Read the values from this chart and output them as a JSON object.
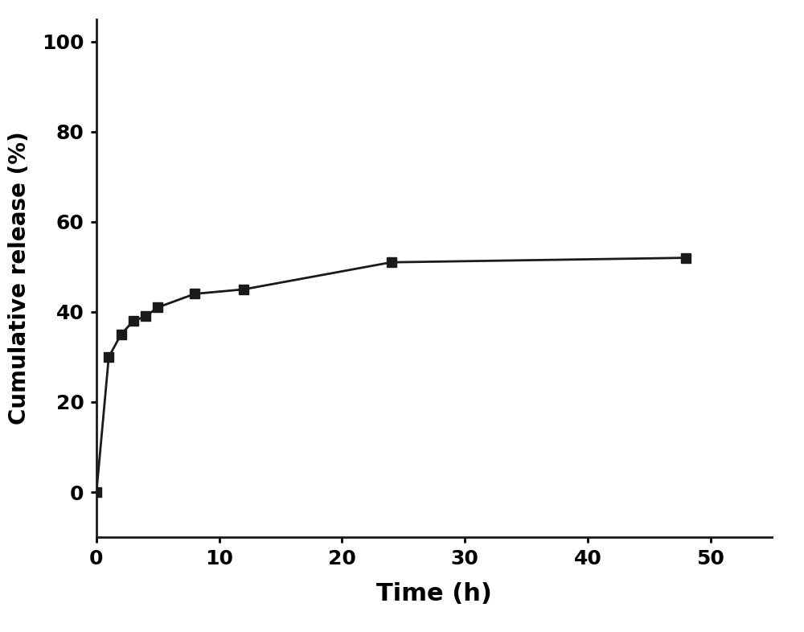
{
  "x": [
    0,
    1,
    2,
    3,
    4,
    5,
    8,
    12,
    24,
    48
  ],
  "y": [
    0,
    30,
    35,
    38,
    39,
    41,
    44,
    45,
    51,
    52
  ],
  "xlabel": "Time (h)",
  "ylabel": "Cumulative release (%)",
  "xlim": [
    0,
    55
  ],
  "ylim": [
    -10,
    105
  ],
  "xticks": [
    0,
    10,
    20,
    30,
    40,
    50
  ],
  "yticks": [
    0,
    20,
    40,
    60,
    80,
    100
  ],
  "line_color": "#1a1a1a",
  "marker": "s",
  "marker_size": 9,
  "line_width": 2.0,
  "background_color": "#ffffff",
  "xlabel_fontsize": 22,
  "ylabel_fontsize": 20,
  "tick_fontsize": 18,
  "tick_label_fontweight": "bold",
  "axis_label_fontweight": "bold"
}
